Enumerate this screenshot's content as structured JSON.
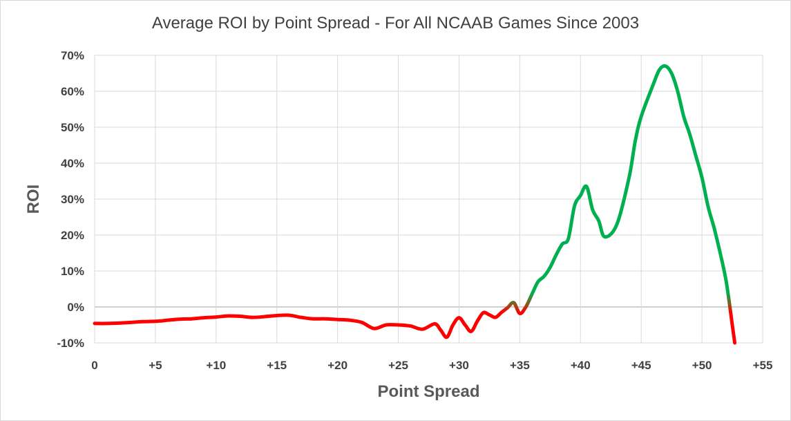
{
  "chart_data": {
    "type": "line",
    "title": "Average ROI by Point Spread - For All NCAAB Games Since 2003",
    "xlabel": "Point Spread",
    "ylabel": "ROI",
    "xlim": [
      0,
      55
    ],
    "ylim": [
      -10,
      70
    ],
    "x_ticks": [
      {
        "value": 0,
        "label": "0"
      },
      {
        "value": 5,
        "label": "+5"
      },
      {
        "value": 10,
        "label": "+10"
      },
      {
        "value": 15,
        "label": "+15"
      },
      {
        "value": 20,
        "label": "+20"
      },
      {
        "value": 25,
        "label": "+25"
      },
      {
        "value": 30,
        "label": "+30"
      },
      {
        "value": 35,
        "label": "+35"
      },
      {
        "value": 40,
        "label": "+40"
      },
      {
        "value": 45,
        "label": "+45"
      },
      {
        "value": 50,
        "label": "+50"
      },
      {
        "value": 55,
        "label": "+55"
      }
    ],
    "y_ticks": [
      {
        "value": -10,
        "label": "-10%"
      },
      {
        "value": 0,
        "label": "0%"
      },
      {
        "value": 10,
        "label": "10%"
      },
      {
        "value": 20,
        "label": "20%"
      },
      {
        "value": 30,
        "label": "30%"
      },
      {
        "value": 40,
        "label": "40%"
      },
      {
        "value": 50,
        "label": "50%"
      },
      {
        "value": 60,
        "label": "60%"
      },
      {
        "value": 70,
        "label": "70%"
      }
    ],
    "grid": true,
    "legend": "none",
    "colors": {
      "negative": "#ff0000",
      "positive": "#00b050",
      "transition": "#7f5f1f",
      "zero_line": "#bfbfbf",
      "grid": "#d9d9d9"
    },
    "series": [
      {
        "points": [
          [
            0,
            -4.6
          ],
          [
            1,
            -4.6
          ],
          [
            2,
            -4.5
          ],
          [
            3,
            -4.3
          ],
          [
            4,
            -4.1
          ],
          [
            5,
            -4.0
          ],
          [
            6,
            -3.7
          ],
          [
            7,
            -3.4
          ],
          [
            8,
            -3.3
          ],
          [
            9,
            -3.0
          ],
          [
            10,
            -2.8
          ],
          [
            11,
            -2.5
          ],
          [
            12,
            -2.6
          ],
          [
            13,
            -2.9
          ],
          [
            14,
            -2.7
          ],
          [
            15,
            -2.4
          ],
          [
            16,
            -2.3
          ],
          [
            17,
            -2.9
          ],
          [
            18,
            -3.3
          ],
          [
            19,
            -3.3
          ],
          [
            20,
            -3.5
          ],
          [
            21,
            -3.7
          ],
          [
            22,
            -4.3
          ],
          [
            23,
            -6.0
          ],
          [
            24,
            -5.0
          ],
          [
            25,
            -5.0
          ],
          [
            26,
            -5.3
          ],
          [
            27,
            -6.2
          ],
          [
            28,
            -4.7
          ],
          [
            28.5,
            -6.5
          ],
          [
            29,
            -8.4
          ],
          [
            29.5,
            -5.0
          ],
          [
            30,
            -3.0
          ],
          [
            30.5,
            -5.0
          ],
          [
            31,
            -6.8
          ],
          [
            31.5,
            -4.0
          ],
          [
            32,
            -1.6
          ],
          [
            32.5,
            -2.2
          ],
          [
            33,
            -2.9
          ],
          [
            33.5,
            -1.5
          ],
          [
            34,
            -0.2
          ],
          [
            34.5,
            1.2
          ],
          [
            35,
            -1.8
          ],
          [
            35.5,
            0.0
          ],
          [
            36,
            3.5
          ],
          [
            36.5,
            7.0
          ],
          [
            37,
            8.5
          ],
          [
            37.5,
            11.0
          ],
          [
            38,
            14.5
          ],
          [
            38.5,
            17.5
          ],
          [
            39,
            19.0
          ],
          [
            39.5,
            28.0
          ],
          [
            40,
            31.0
          ],
          [
            40.5,
            33.5
          ],
          [
            41,
            27.0
          ],
          [
            41.5,
            24.0
          ],
          [
            42,
            19.5
          ],
          [
            43,
            23.0
          ],
          [
            44,
            36.0
          ],
          [
            44.5,
            46.0
          ],
          [
            45,
            53.0
          ],
          [
            46,
            62.0
          ],
          [
            46.5,
            66.0
          ],
          [
            47,
            67.0
          ],
          [
            47.5,
            65.0
          ],
          [
            48,
            60.0
          ],
          [
            48.5,
            53.0
          ],
          [
            49,
            48.0
          ],
          [
            49.5,
            42.0
          ],
          [
            50,
            36.0
          ],
          [
            50.5,
            28.0
          ],
          [
            51,
            22.0
          ],
          [
            51.5,
            15.0
          ],
          [
            52,
            7.0
          ],
          [
            52.5,
            -5.0
          ],
          [
            52.7,
            -10.0
          ]
        ]
      }
    ]
  }
}
